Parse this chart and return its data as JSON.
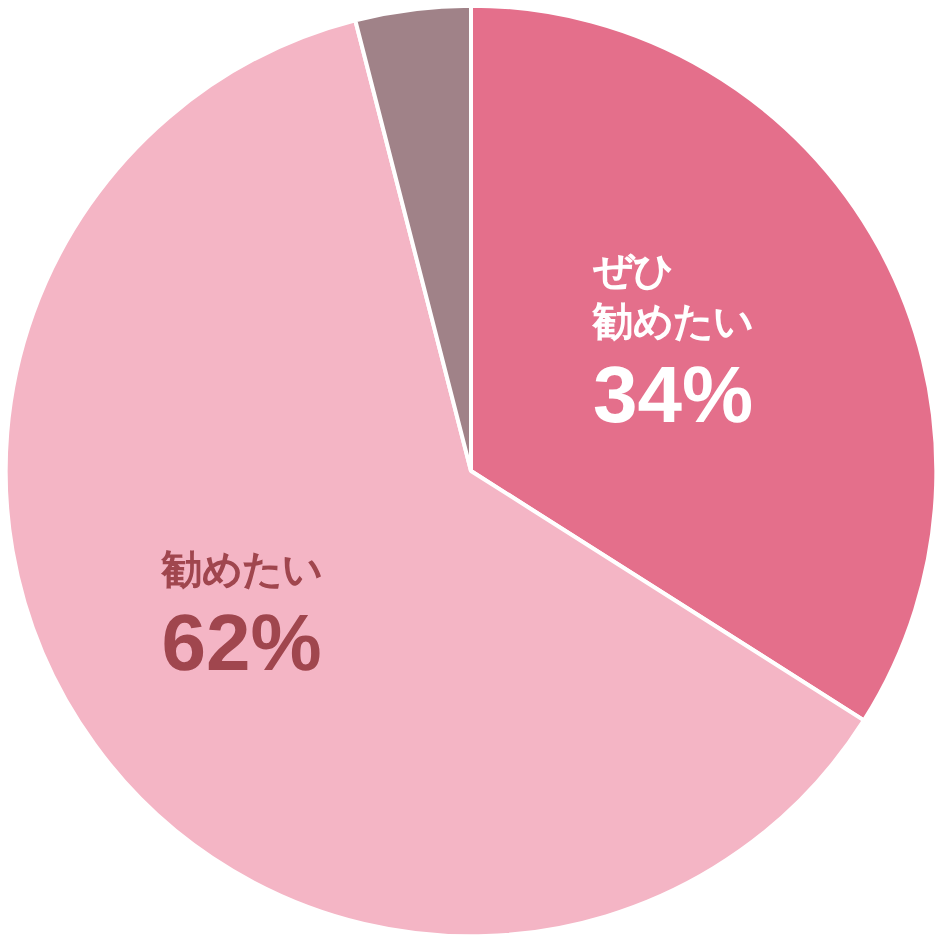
{
  "chart_data": {
    "type": "pie",
    "categories": [
      "ぜひ勧めたい",
      "勧めたい",
      null
    ],
    "values": [
      34,
      62,
      4
    ],
    "colors": [
      "#e46f8b",
      "#f4b5c5",
      "#a08288"
    ],
    "value_labels": [
      "34%",
      "62%",
      null
    ]
  }
}
